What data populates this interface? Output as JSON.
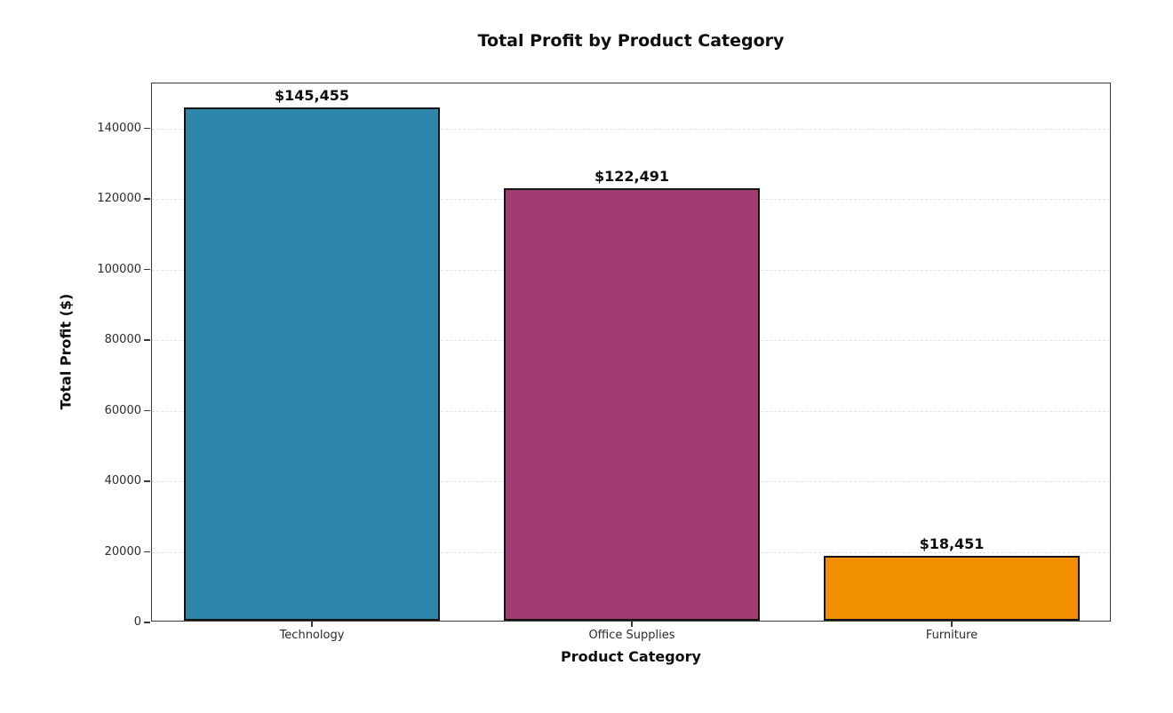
{
  "chart_data": {
    "type": "bar",
    "title": "Total Profit by Product Category",
    "xlabel": "Product Category",
    "ylabel": "Total Profit ($)",
    "categories": [
      "Technology",
      "Office Supplies",
      "Furniture"
    ],
    "values": [
      145455,
      122491,
      18451
    ],
    "value_labels": [
      "$145,455",
      "$122,491",
      "$18,451"
    ],
    "bar_colors": [
      "#2E86AB",
      "#A23B72",
      "#F18F01"
    ],
    "bar_edge_color": "#141414",
    "bar_width_fraction": 0.8,
    "ylim": [
      0,
      152728
    ],
    "yticks": [
      0,
      20000,
      40000,
      60000,
      80000,
      100000,
      120000,
      140000
    ],
    "ytick_labels": [
      "0",
      "20000",
      "40000",
      "60000",
      "80000",
      "100000",
      "120000",
      "140000"
    ],
    "grid": {
      "axis": "y",
      "style": "dashed",
      "color": "#e5e5e5"
    },
    "legend": "none",
    "background": "#ffffff"
  }
}
